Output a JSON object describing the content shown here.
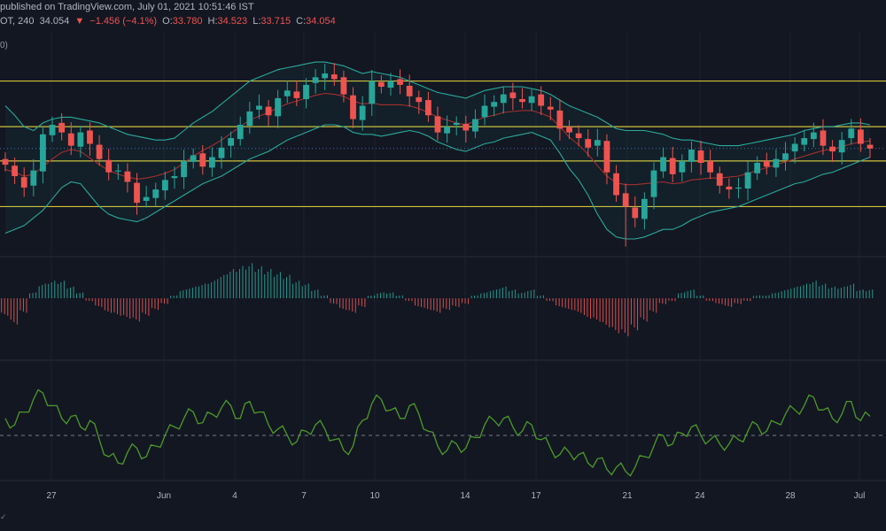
{
  "header": {
    "published": "published on TradingView.com, July 01, 2021 10:51:46 IST",
    "symbol_fragment": "OT, 240",
    "price": "34.054",
    "change_arrow": "▼",
    "change": "−1.456 (−4.1%)",
    "o_label": "O:",
    "o_value": "33.780",
    "h_label": "H:",
    "h_value": "34.523",
    "l_label": "L:",
    "l_value": "33.715",
    "c_label": "C:",
    "c_value": "34.054",
    "indicator_note": "0)"
  },
  "colors": {
    "background": "#131722",
    "up": "#26a69a",
    "down": "#ef5350",
    "level_lines": "#d4c23a",
    "bollinger": "#2aa99b",
    "ma": "#a5302f",
    "hist_up": "#26a69a",
    "hist_down": "#ef5350",
    "rsi": "#4c9a2a",
    "separator": "#2a2e39"
  },
  "chart_data": {
    "type": "candlestick",
    "x_tick_labels": [
      "27",
      "Jun",
      "4",
      "7",
      "10",
      "14",
      "17",
      "21",
      "24",
      "28",
      "Jul"
    ],
    "price_levels": [
      37.6,
      35.2,
      33.4,
      31.0
    ],
    "price_close": [
      33.2,
      32.6,
      32.0,
      32.9,
      34.8,
      35.3,
      34.9,
      34.2,
      34.9,
      34.3,
      33.5,
      32.8,
      32.9,
      32.3,
      31.2,
      31.5,
      31.9,
      32.4,
      32.6,
      33.4,
      33.7,
      33.1,
      33.6,
      34.1,
      34.6,
      35.3,
      36.0,
      36.3,
      35.8,
      36.7,
      37.1,
      36.7,
      37.4,
      37.8,
      38.0,
      37.7,
      36.9,
      35.6,
      36.3,
      37.6,
      37.3,
      37.6,
      37.4,
      36.8,
      36.5,
      35.8,
      34.9,
      35.2,
      35.4,
      35.0,
      35.6,
      36.3,
      36.5,
      36.9,
      36.7,
      36.5,
      36.8,
      36.3,
      36.1,
      35.1,
      34.9,
      34.6,
      34.1,
      34.5,
      32.8,
      31.6,
      31.0,
      30.4,
      31.4,
      32.9,
      33.6,
      32.7,
      33.4,
      34.0,
      33.3,
      32.8,
      32.1,
      31.9,
      32.0,
      32.8,
      33.3,
      33.1,
      33.5,
      33.8,
      34.3,
      34.6,
      34.9,
      34.2,
      33.9,
      34.5,
      35.1,
      34.3,
      34.054
    ],
    "bollinger_upper_approx": [
      36.3,
      35.8,
      35.2,
      35.0,
      35.4,
      35.6,
      35.7,
      35.7,
      35.6,
      35.5,
      35.4,
      35.2,
      35.0,
      34.8,
      34.7,
      34.6,
      34.5,
      34.5,
      34.6,
      35.0,
      35.4,
      35.7,
      36.0,
      36.4,
      36.8,
      37.2,
      37.6,
      37.8,
      38.0,
      38.2,
      38.3,
      38.4,
      38.5,
      38.6,
      38.6,
      38.5,
      38.4,
      38.2,
      38.0,
      38.1,
      38.0,
      37.9,
      37.8,
      37.6,
      37.4,
      37.2,
      37.0,
      36.9,
      36.8,
      36.7,
      36.9,
      37.1,
      37.2,
      37.3,
      37.3,
      37.3,
      37.2,
      37.1,
      36.9,
      36.6,
      36.3,
      36.1,
      35.9,
      35.7,
      35.4,
      35.1,
      35.0,
      35.0,
      35.0,
      34.9,
      34.8,
      34.6,
      34.5,
      34.5,
      34.4,
      34.3,
      34.2,
      34.2,
      34.2,
      34.3,
      34.4,
      34.5,
      34.6,
      34.7,
      34.8,
      35.0,
      35.1,
      35.2,
      35.2,
      35.3,
      35.4,
      35.4,
      35.3
    ],
    "bollinger_lower_approx": [
      29.6,
      29.8,
      30.0,
      30.4,
      30.8,
      31.4,
      32.0,
      32.3,
      32.2,
      31.6,
      31.0,
      30.6,
      30.4,
      30.3,
      30.2,
      30.4,
      30.7,
      31.0,
      31.3,
      31.6,
      31.9,
      32.2,
      32.4,
      32.6,
      32.9,
      33.2,
      33.5,
      33.7,
      33.9,
      34.2,
      34.5,
      34.7,
      34.9,
      35.1,
      35.3,
      35.3,
      35.2,
      34.9,
      34.8,
      34.8,
      34.7,
      34.8,
      34.9,
      35.0,
      34.9,
      34.7,
      34.4,
      34.2,
      34.0,
      33.9,
      34.1,
      34.3,
      34.4,
      34.6,
      34.7,
      34.8,
      34.9,
      34.7,
      34.5,
      33.8,
      33.0,
      32.4,
      31.6,
      30.6,
      29.8,
      29.4,
      29.3,
      29.3,
      29.4,
      29.6,
      29.8,
      29.8,
      30.0,
      30.3,
      30.5,
      30.7,
      30.8,
      30.9,
      31.0,
      31.2,
      31.4,
      31.6,
      31.8,
      32.0,
      32.2,
      32.3,
      32.5,
      32.7,
      32.8,
      33.0,
      33.2,
      33.4,
      33.6
    ],
    "macd_histogram_approx": [
      -0.6,
      -0.9,
      -0.5,
      0.2,
      0.5,
      0.6,
      0.6,
      0.4,
      0.2,
      -0.1,
      -0.3,
      -0.5,
      -0.6,
      -0.7,
      -0.8,
      -0.6,
      -0.4,
      -0.2,
      0.1,
      0.3,
      0.4,
      0.5,
      0.6,
      0.8,
      1.0,
      1.1,
      1.2,
      1.1,
      1.0,
      0.9,
      0.8,
      0.6,
      0.5,
      0.3,
      0.1,
      -0.2,
      -0.4,
      -0.5,
      -0.3,
      0.1,
      0.2,
      0.2,
      0.1,
      -0.1,
      -0.3,
      -0.4,
      -0.5,
      -0.4,
      -0.3,
      -0.2,
      0.1,
      0.2,
      0.3,
      0.4,
      0.3,
      0.2,
      0.3,
      0.1,
      -0.1,
      -0.3,
      -0.4,
      -0.5,
      -0.7,
      -0.8,
      -1.0,
      -1.2,
      -1.3,
      -1.1,
      -0.8,
      -0.5,
      -0.2,
      -0.1,
      0.2,
      0.3,
      0.1,
      -0.1,
      -0.2,
      -0.3,
      -0.2,
      -0.1,
      0.1,
      0.1,
      0.2,
      0.3,
      0.4,
      0.5,
      0.6,
      0.5,
      0.4,
      0.4,
      0.5,
      0.3,
      0.3
    ],
    "rsi_approx": [
      58,
      55,
      61,
      67,
      70,
      64,
      58,
      59,
      54,
      57,
      48,
      40,
      37,
      42,
      44,
      40,
      45,
      50,
      54,
      58,
      61,
      56,
      60,
      63,
      64,
      58,
      66,
      61,
      55,
      53,
      50,
      47,
      52,
      55,
      53,
      48,
      43,
      45,
      57,
      65,
      67,
      62,
      58,
      64,
      60,
      52,
      45,
      43,
      46,
      44,
      49,
      55,
      57,
      58,
      54,
      52,
      55,
      48,
      44,
      41,
      42,
      41,
      37,
      39,
      34,
      35,
      33,
      35,
      40,
      45,
      50,
      46,
      51,
      54,
      50,
      48,
      46,
      46,
      48,
      52,
      55,
      52,
      56,
      60,
      62,
      64,
      68,
      62,
      58,
      60,
      66,
      57,
      59
    ],
    "rsi_midline": 50
  }
}
